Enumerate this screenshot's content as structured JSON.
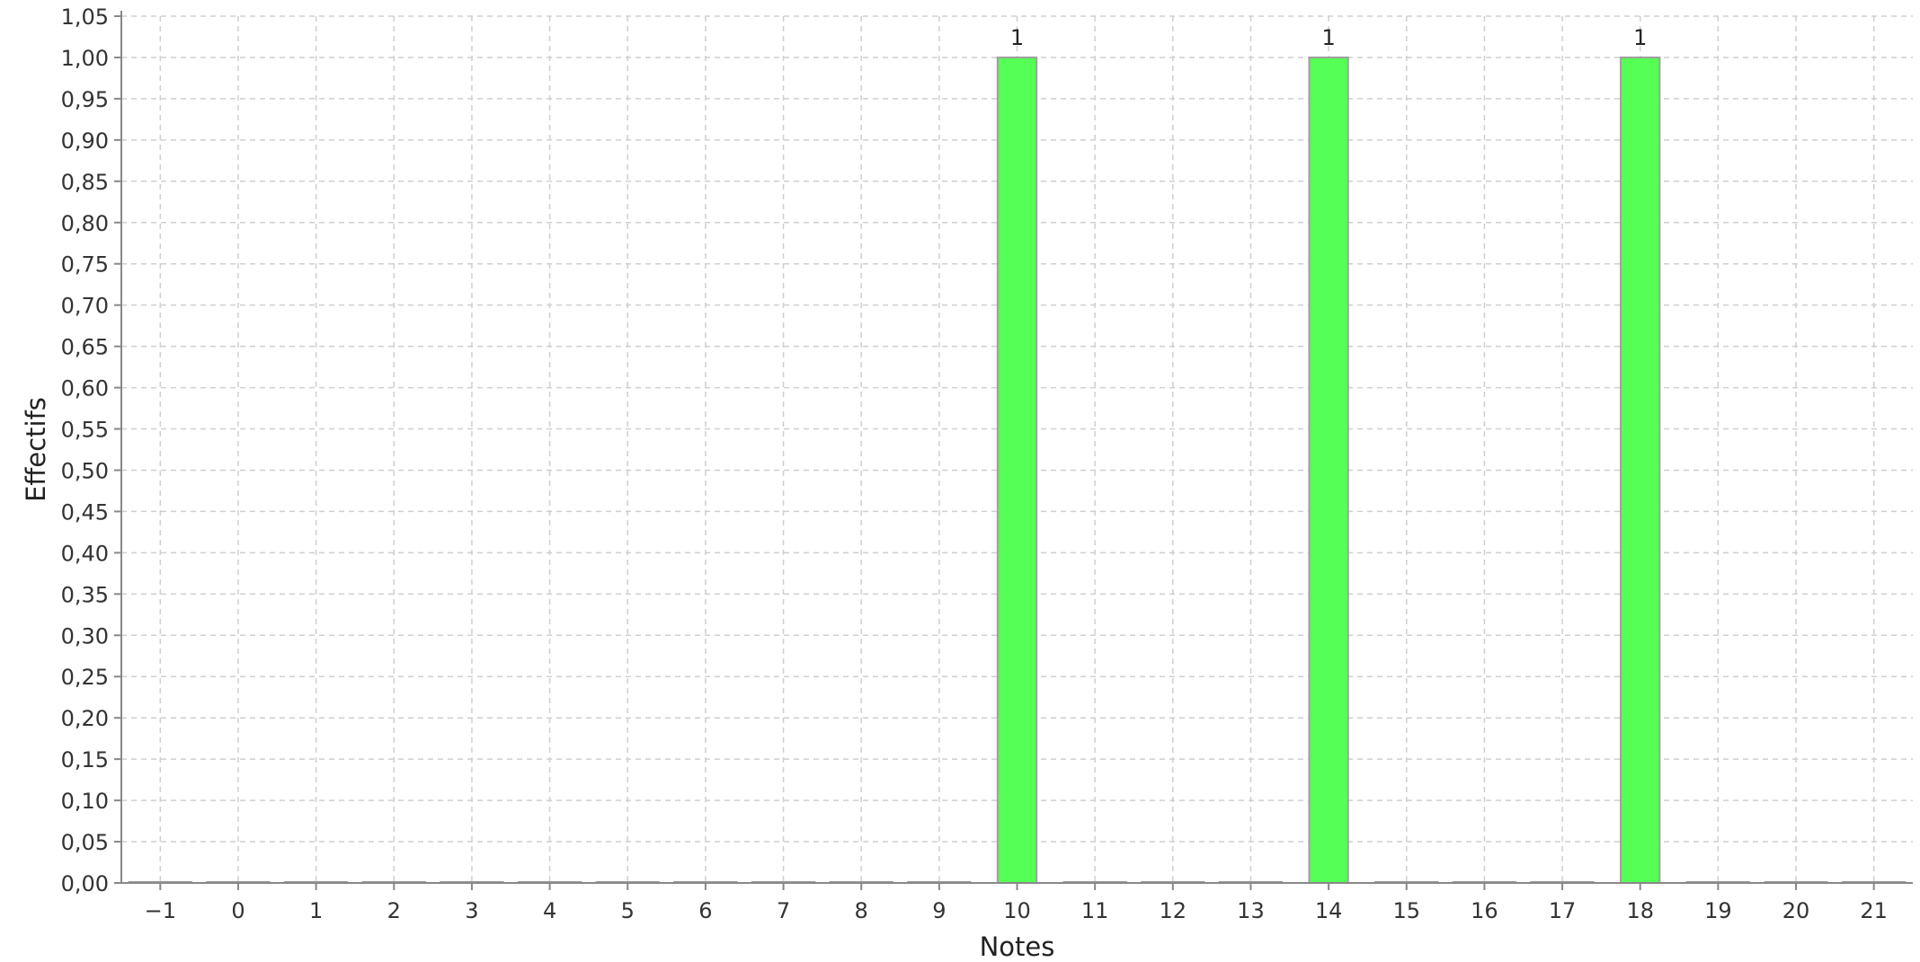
{
  "chart_data": {
    "type": "bar",
    "title": "",
    "xlabel": "Notes",
    "ylabel": "Effectifs",
    "categories": [
      "-1",
      "0",
      "1",
      "2",
      "3",
      "4",
      "5",
      "6",
      "7",
      "8",
      "9",
      "10",
      "11",
      "12",
      "13",
      "14",
      "15",
      "16",
      "17",
      "18",
      "19",
      "20",
      "21"
    ],
    "category_labels": [
      "−1",
      "0",
      "1",
      "2",
      "3",
      "4",
      "5",
      "6",
      "7",
      "8",
      "9",
      "10",
      "11",
      "12",
      "13",
      "14",
      "15",
      "16",
      "17",
      "18",
      "19",
      "20",
      "21"
    ],
    "values": [
      0,
      0,
      0,
      0,
      0,
      0,
      0,
      0,
      0,
      0,
      0,
      1,
      0,
      0,
      0,
      1,
      0,
      0,
      0,
      1,
      0,
      0,
      0
    ],
    "data_labels": [
      "",
      "",
      "",
      "",
      "",
      "",
      "",
      "",
      "",
      "",
      "",
      "1",
      "",
      "",
      "",
      "1",
      "",
      "",
      "",
      "1",
      "",
      "",
      ""
    ],
    "ylim": [
      0,
      1.05
    ],
    "yticks": [
      0,
      0.05,
      0.1,
      0.15,
      0.2,
      0.25,
      0.3,
      0.35,
      0.4,
      0.45,
      0.5,
      0.55,
      0.6,
      0.65,
      0.7,
      0.75,
      0.8,
      0.85,
      0.9,
      0.95,
      1.0,
      1.05
    ],
    "ytick_labels": [
      "0,00",
      "0,05",
      "0,10",
      "0,15",
      "0,20",
      "0,25",
      "0,30",
      "0,35",
      "0,40",
      "0,45",
      "0,50",
      "0,55",
      "0,60",
      "0,65",
      "0,70",
      "0,75",
      "0,80",
      "0,85",
      "0,90",
      "0,95",
      "1,00",
      "1,05"
    ],
    "grid": true,
    "legend": "none",
    "colors": {
      "bar": "#55ff55",
      "bar_border": "#a0a0a0",
      "grid": "#cfcfcf",
      "axis": "#888888"
    }
  }
}
